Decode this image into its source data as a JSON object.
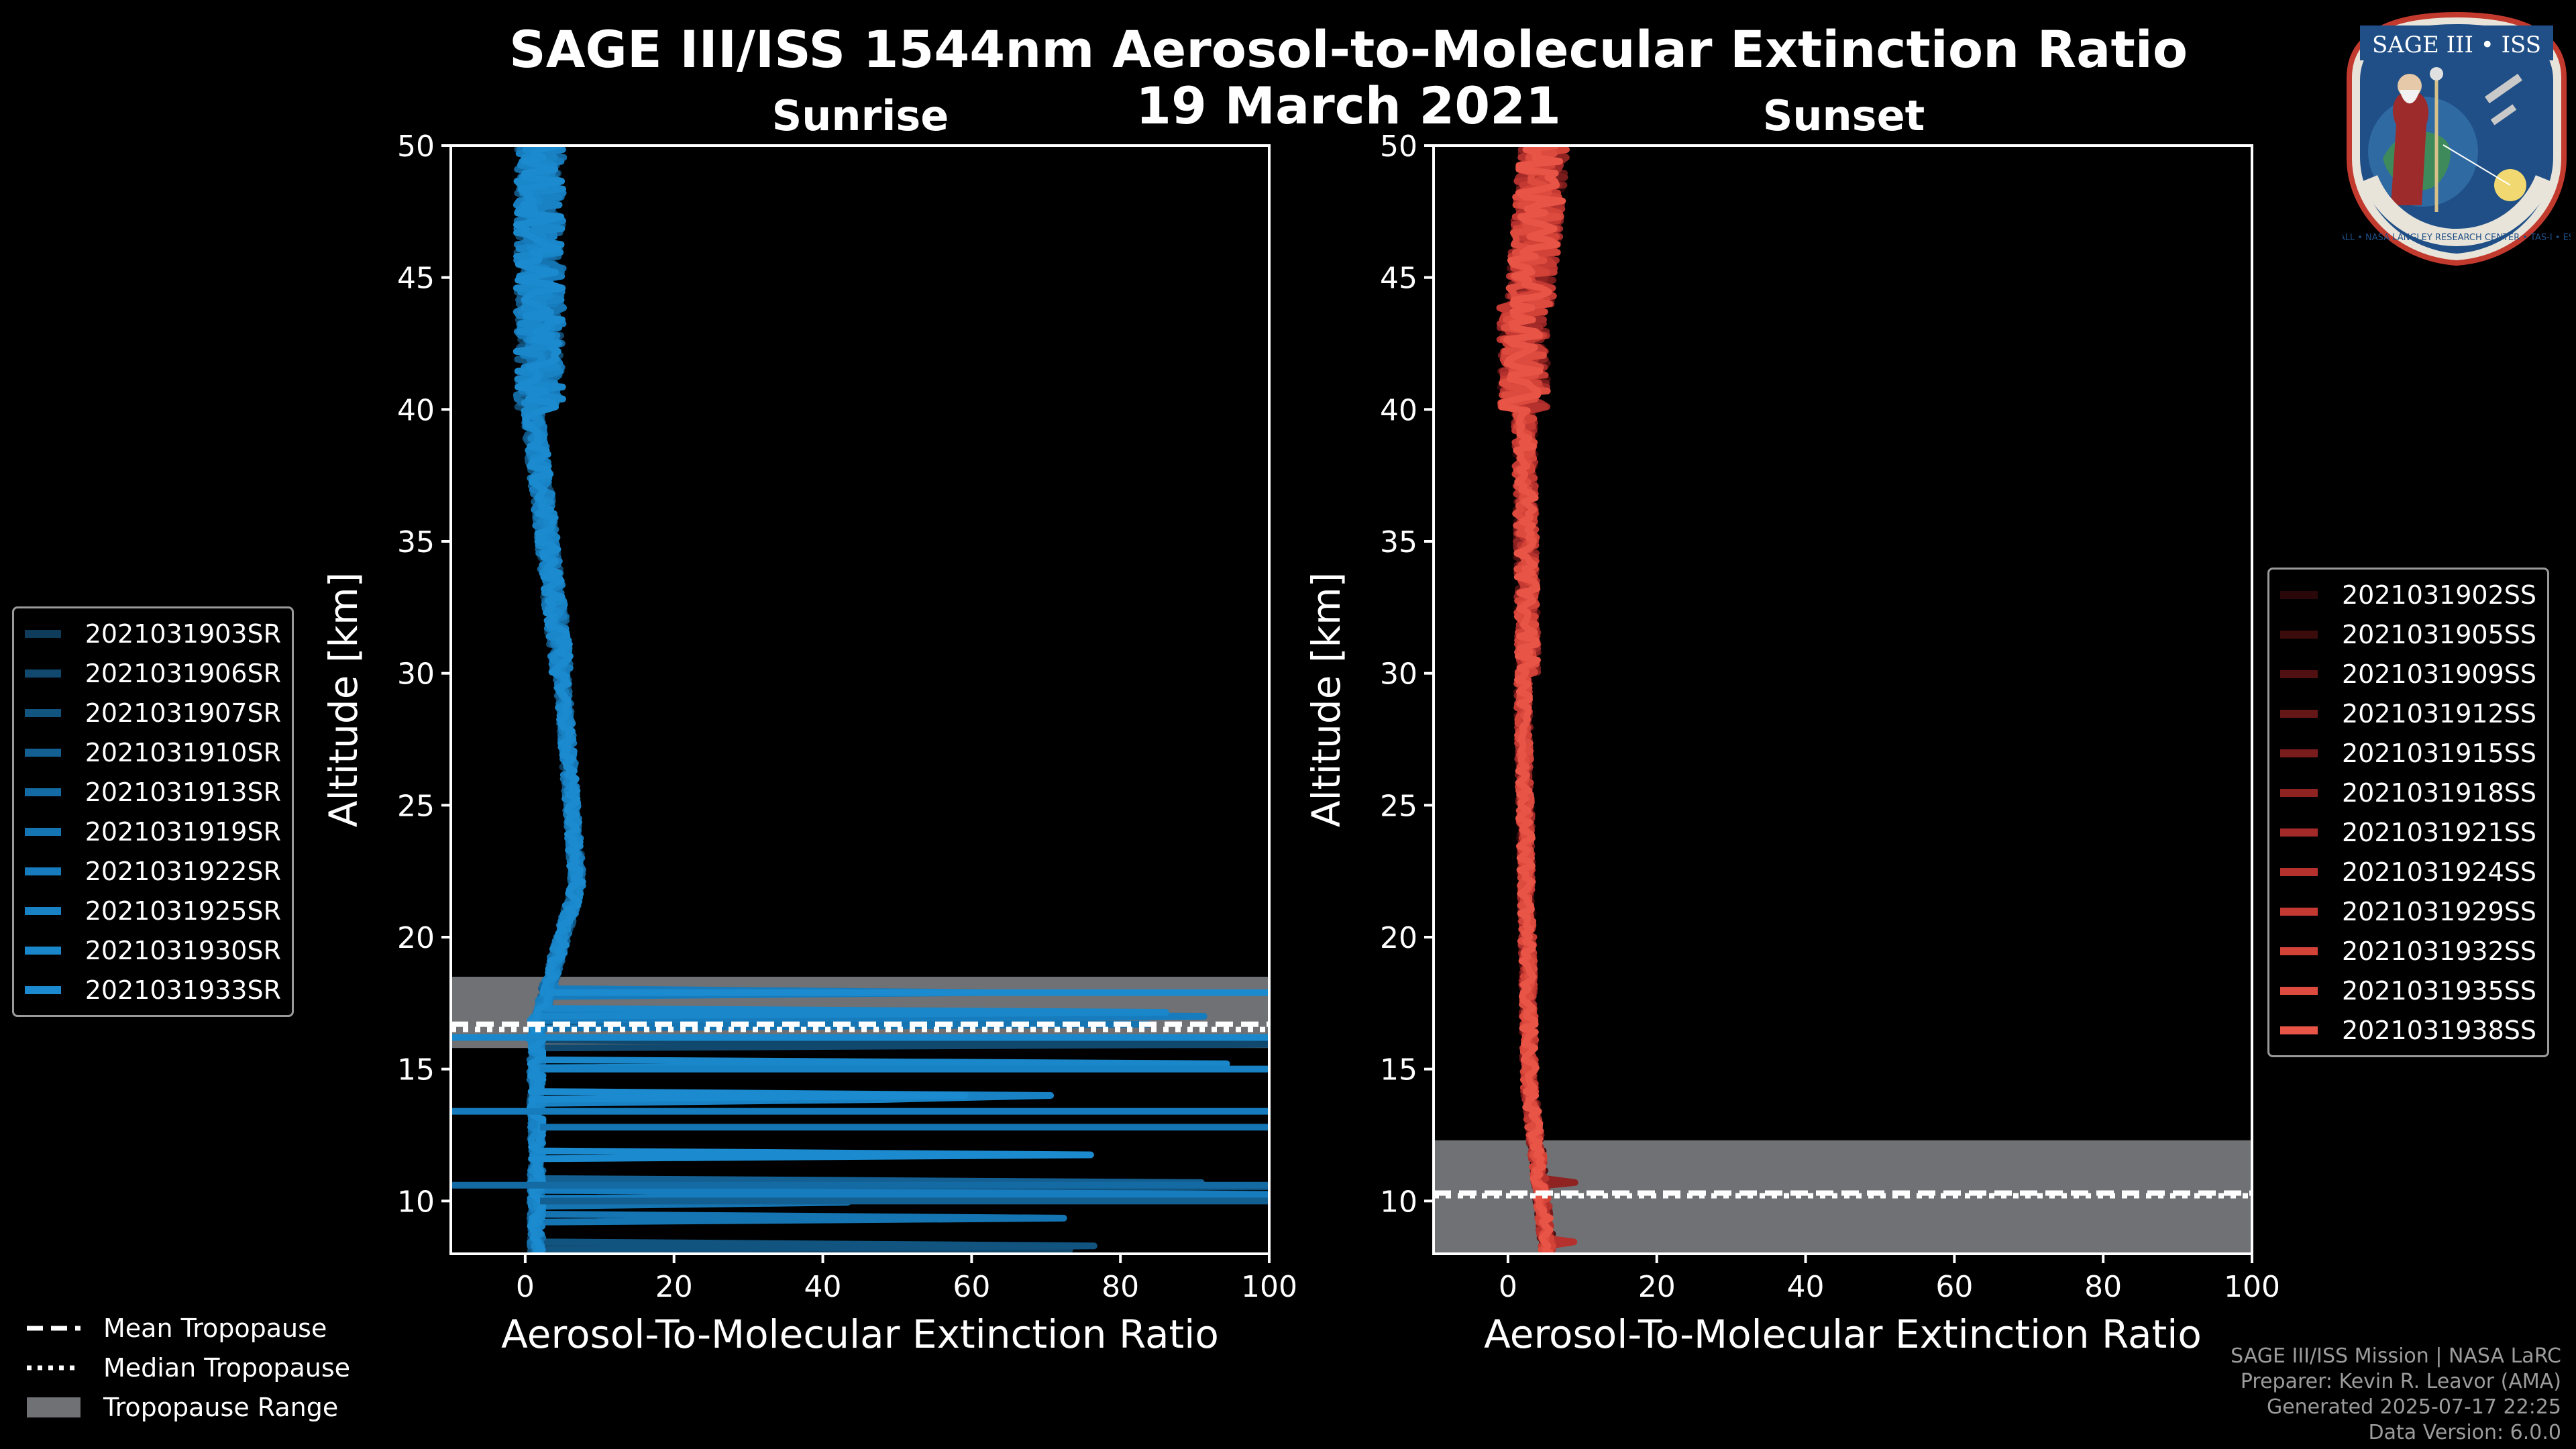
{
  "title": {
    "line1": "SAGE III/ISS 1544nm Aerosol-to-Molecular Extinction Ratio",
    "line2": "19 March 2021"
  },
  "logo": {
    "text": "SAGE III • ISS",
    "bottom_text": "BALL • NASA LANGLEY RESEARCH CENTER • TAS-I • ESA"
  },
  "colors": {
    "background": "#000000",
    "sunrise": "#1b86c8",
    "sunset": "#e8564a",
    "tropopause_band": "#6f7174",
    "axes": "#ffffff"
  },
  "chart_data": [
    {
      "type": "line",
      "panel": "sunrise",
      "title": "Sunrise",
      "xlabel": "Aerosol-To-Molecular Extinction Ratio",
      "ylabel": "Altitude [km]",
      "xlim": [
        -10,
        100
      ],
      "ylim": [
        8,
        50
      ],
      "xticks": [
        0,
        20,
        40,
        60,
        80,
        100
      ],
      "yticks": [
        10,
        15,
        20,
        25,
        30,
        35,
        40,
        45,
        50
      ],
      "tropopause": {
        "mean": 16.7,
        "median": 16.5,
        "range": [
          15.8,
          18.5
        ]
      },
      "legend_position": "left",
      "series": [
        {
          "name": "2021031903SR",
          "color": "#0f3c5a"
        },
        {
          "name": "2021031906SR",
          "color": "#11486d"
        },
        {
          "name": "2021031907SR",
          "color": "#125480"
        },
        {
          "name": "2021031910SR",
          "color": "#135f92"
        },
        {
          "name": "2021031913SR",
          "color": "#146ba3"
        },
        {
          "name": "2021031919SR",
          "color": "#1574b2"
        },
        {
          "name": "2021031922SR",
          "color": "#167cbd"
        },
        {
          "name": "2021031925SR",
          "color": "#1882c5"
        },
        {
          "name": "2021031930SR",
          "color": "#1987ca"
        },
        {
          "name": "2021031933SR",
          "color": "#1b8ace"
        }
      ]
    },
    {
      "type": "line",
      "panel": "sunset",
      "title": "Sunset",
      "xlabel": "Aerosol-To-Molecular Extinction Ratio",
      "ylabel": "Altitude [km]",
      "xlim": [
        -10,
        100
      ],
      "ylim": [
        8,
        50
      ],
      "xticks": [
        0,
        20,
        40,
        60,
        80,
        100
      ],
      "yticks": [
        10,
        15,
        20,
        25,
        30,
        35,
        40,
        45,
        50
      ],
      "tropopause": {
        "mean": 10.3,
        "median": 10.2,
        "range": [
          8,
          12.3
        ]
      },
      "legend_position": "right",
      "series": [
        {
          "name": "2021031902SS",
          "color": "#2a0708"
        },
        {
          "name": "2021031905SS",
          "color": "#3c0b0c"
        },
        {
          "name": "2021031909SS",
          "color": "#501011"
        },
        {
          "name": "2021031912SS",
          "color": "#651617"
        },
        {
          "name": "2021031915SS",
          "color": "#7a1c1c"
        },
        {
          "name": "2021031918SS",
          "color": "#8f2322"
        },
        {
          "name": "2021031921SS",
          "color": "#a32a28"
        },
        {
          "name": "2021031924SS",
          "color": "#b4312d"
        },
        {
          "name": "2021031929SS",
          "color": "#c43932"
        },
        {
          "name": "2021031932SS",
          "color": "#d24237"
        },
        {
          "name": "2021031935SS",
          "color": "#dd4b3f"
        },
        {
          "name": "2021031938SS",
          "color": "#e85446"
        }
      ]
    }
  ],
  "tropopause_legend": [
    {
      "label": "Mean Tropopause",
      "style": "dashed"
    },
    {
      "label": "Median Tropopause",
      "style": "dotted"
    },
    {
      "label": "Tropopause Range",
      "style": "band"
    }
  ],
  "credits": [
    "SAGE III/ISS Mission | NASA LaRC",
    "Preparer: Kevin R. Leavor (AMA)",
    "Generated 2025-07-17 22:25",
    "Data Version: 6.0.0"
  ]
}
